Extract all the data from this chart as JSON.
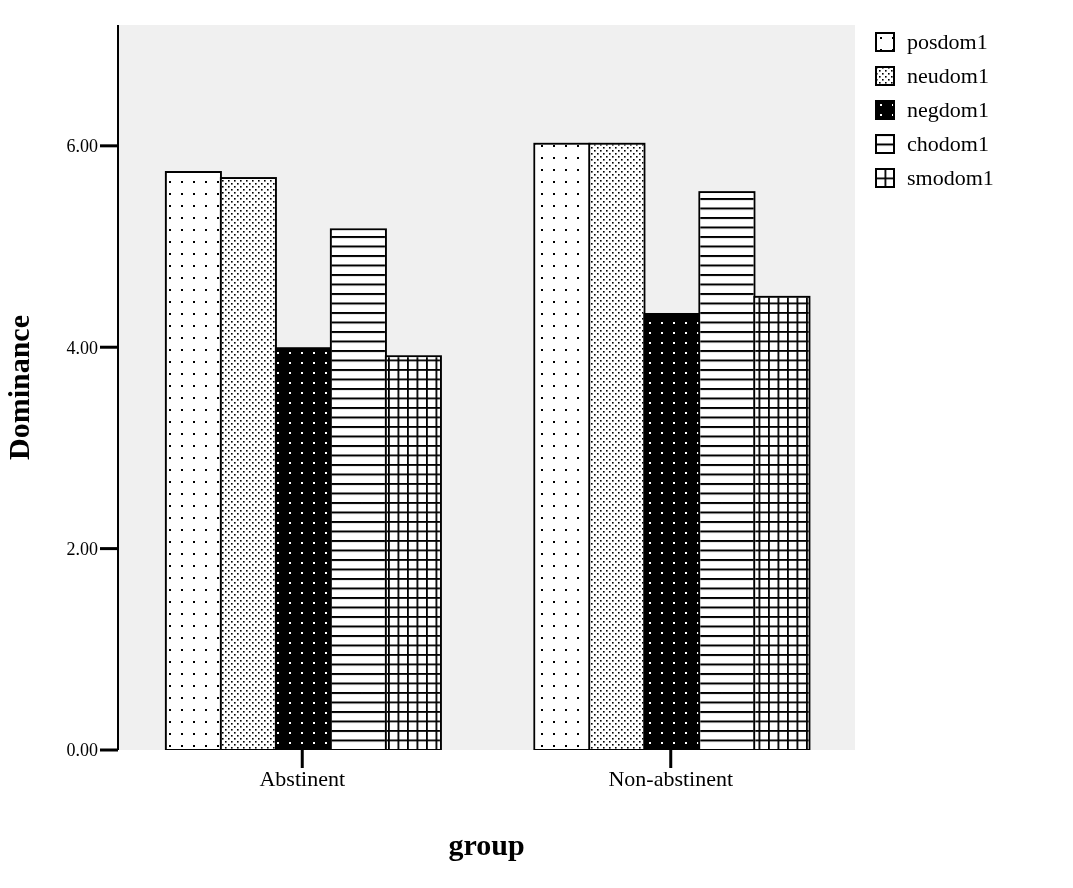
{
  "chart_data": {
    "type": "bar",
    "xlabel": "group",
    "ylabel": "Dominance",
    "categories": [
      "Abstinent",
      "Non-abstinent"
    ],
    "series": [
      {
        "name": "posdom1",
        "color": "#ffffff",
        "values": [
          5.74,
          6.02
        ]
      },
      {
        "name": "neudom1",
        "color": "#ffffff",
        "values": [
          5.68,
          6.02
        ]
      },
      {
        "name": "negdom1",
        "color": "#000000",
        "values": [
          3.99,
          4.33
        ]
      },
      {
        "name": "chodom1",
        "color": "#ffffff",
        "values": [
          5.17,
          5.54
        ]
      },
      {
        "name": "smodom1",
        "color": "#ffffff",
        "values": [
          3.91,
          4.5
        ]
      }
    ],
    "ylim": [
      0,
      7.2
    ],
    "yticks": [
      {
        "value": 0,
        "label": "0.00"
      },
      {
        "value": 2,
        "label": "2.00"
      },
      {
        "value": 4,
        "label": "4.00"
      },
      {
        "value": 6,
        "label": "6.00"
      }
    ],
    "grid": false,
    "legend": "top right"
  }
}
